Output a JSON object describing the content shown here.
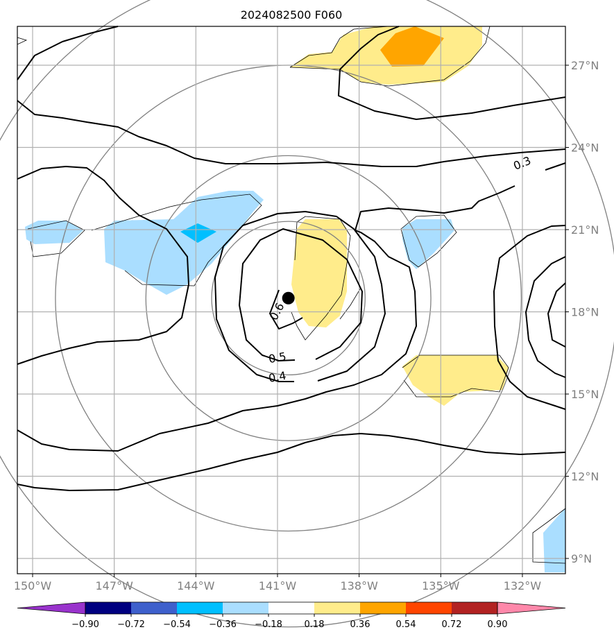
{
  "chart_data": {
    "type": "map-contour",
    "title": "2024082500 F060",
    "lon_range": [
      -150.4,
      -129.7
    ],
    "lat_range": [
      8.4,
      28.6
    ],
    "x_ticks": [
      -150,
      -147,
      -144,
      -141,
      -138,
      -135,
      -132
    ],
    "x_tick_labels": [
      "150°W",
      "147°W",
      "144°W",
      "141°W",
      "138°W",
      "135°W",
      "132°W"
    ],
    "y_ticks": [
      9,
      12,
      15,
      18,
      21,
      24,
      27
    ],
    "y_tick_labels": [
      "9°N",
      "12°N",
      "15°N",
      "18°N",
      "21°N",
      "24°N",
      "27°N"
    ],
    "grid": true,
    "storm_center": {
      "lon": -140.6,
      "lat": 18.5
    },
    "range_rings_deg": [
      2.8,
      5.2,
      8.5,
      12.0
    ],
    "contour_labels": [
      {
        "text": "0.6",
        "lon": -141.0,
        "lat": 18.0,
        "angle": -62
      },
      {
        "text": "0.5",
        "lon": -141.0,
        "lat": 16.3,
        "angle": -10
      },
      {
        "text": "0.4",
        "lon": -141.0,
        "lat": 15.6,
        "angle": -10
      },
      {
        "text": "0.3",
        "lon": -132.0,
        "lat": 23.4,
        "angle": -22
      }
    ],
    "colorbar": {
      "boundaries": [
        -0.9,
        -0.72,
        -0.54,
        -0.36,
        -0.18,
        0.18,
        0.36,
        0.54,
        0.72,
        0.9
      ],
      "tick_labels": [
        "−0.90",
        "−0.72",
        "−0.54",
        "−0.36",
        "−0.18",
        "0.18",
        "0.36",
        "0.54",
        "0.72",
        "0.90"
      ],
      "colors": [
        "#9933cc",
        "#000080",
        "#3e60cc",
        "#00bfff",
        "#aadeff",
        "#ffffff",
        "#ffec8b",
        "#ffa500",
        "#ff4500",
        "#b22222",
        "#ff88aa"
      ],
      "extend": "both"
    }
  }
}
